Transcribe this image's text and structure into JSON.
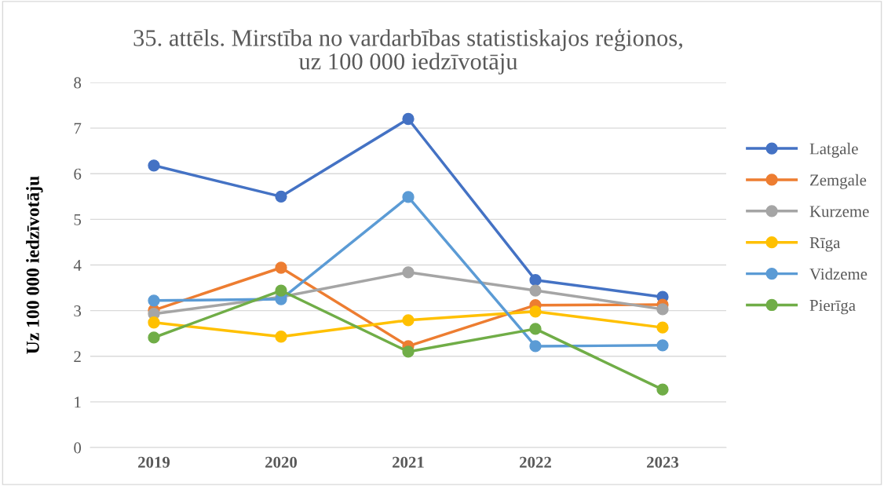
{
  "chart_data": {
    "type": "line",
    "title": "35. attēls. Mirstība no vardarbības statistiskajos reģionos,\nuz 100 000 iedzīvotāju",
    "ylabel": "Uz 100 000 iedzīvotāju",
    "categories": [
      "2019",
      "2020",
      "2021",
      "2022",
      "2023"
    ],
    "series": [
      {
        "name": "Latgale",
        "color": "#4472c4",
        "values": [
          6.18,
          5.5,
          7.2,
          3.67,
          3.3
        ]
      },
      {
        "name": "Zemgale",
        "color": "#ed7d31",
        "values": [
          3.01,
          3.94,
          2.22,
          3.12,
          3.13
        ]
      },
      {
        "name": "Kurzeme",
        "color": "#a5a5a5",
        "values": [
          2.93,
          3.3,
          3.84,
          3.44,
          3.03
        ]
      },
      {
        "name": "Rīga",
        "color": "#ffc000",
        "values": [
          2.74,
          2.43,
          2.79,
          2.98,
          2.63
        ]
      },
      {
        "name": "Vidzeme",
        "color": "#5b9bd5",
        "values": [
          3.22,
          3.25,
          5.49,
          2.22,
          2.24
        ]
      },
      {
        "name": "Pierīga",
        "color": "#70ad47",
        "values": [
          2.41,
          3.44,
          2.1,
          2.6,
          1.27
        ]
      }
    ],
    "ylim": [
      0,
      8
    ],
    "yticks": [
      0,
      1,
      2,
      3,
      4,
      5,
      6,
      7,
      8
    ],
    "grid": "y",
    "legend": "right",
    "marker": "circle",
    "line_style": "solid"
  }
}
